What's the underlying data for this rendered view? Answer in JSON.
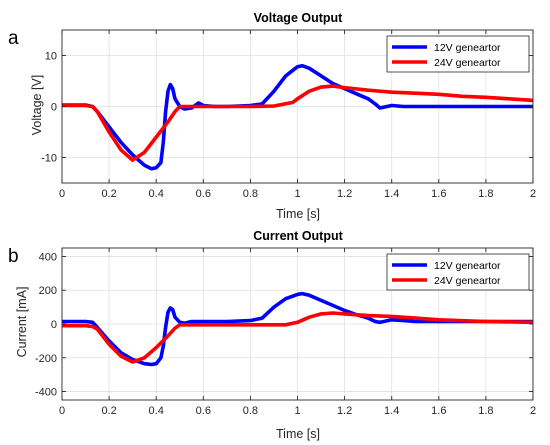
{
  "chart_data": [
    {
      "type": "line",
      "panel_label": "a",
      "title": "Voltage Output",
      "xlabel": "Time [s]",
      "ylabel": "Voltage [V]",
      "xlim": [
        0,
        2
      ],
      "ylim": [
        -15,
        15
      ],
      "xticks": [
        "0",
        "0.2",
        "0.4",
        "0.6",
        "0.8",
        "1",
        "1.2",
        "1.4",
        "1.6",
        "1.8",
        "2"
      ],
      "yticks": [
        "-10",
        "0",
        "10"
      ],
      "ytick_values": [
        -10,
        0,
        10
      ],
      "grid": true,
      "legend_position": "top-right",
      "series": [
        {
          "name": "12V geneartor",
          "color": "#0000ff",
          "x": [
            0,
            0.1,
            0.13,
            0.15,
            0.2,
            0.25,
            0.3,
            0.35,
            0.38,
            0.4,
            0.42,
            0.43,
            0.44,
            0.45,
            0.46,
            0.47,
            0.48,
            0.5,
            0.52,
            0.55,
            0.58,
            0.6,
            0.65,
            0.7,
            0.8,
            0.85,
            0.9,
            0.95,
            1.0,
            1.02,
            1.05,
            1.1,
            1.15,
            1.2,
            1.25,
            1.3,
            1.33,
            1.35,
            1.38,
            1.4,
            1.45,
            1.5,
            1.6,
            1.8,
            2.0
          ],
          "y": [
            0.3,
            0.3,
            0,
            -1,
            -4,
            -7,
            -9.5,
            -11.5,
            -12.2,
            -12,
            -11,
            -7,
            -1,
            3,
            4.3,
            3.5,
            1.5,
            0,
            -0.5,
            -0.3,
            0.7,
            0.2,
            0,
            0,
            0.2,
            0.5,
            3,
            6,
            7.8,
            8,
            7.5,
            6,
            4.5,
            3.5,
            2.5,
            1.5,
            0.5,
            -0.3,
            0,
            0.2,
            0,
            0,
            0,
            0,
            0
          ]
        },
        {
          "name": "24V geneartor",
          "color": "#ff0000",
          "x": [
            0,
            0.1,
            0.13,
            0.15,
            0.2,
            0.25,
            0.3,
            0.35,
            0.4,
            0.45,
            0.48,
            0.5,
            0.55,
            0.6,
            0.7,
            0.8,
            0.9,
            0.98,
            1.0,
            1.05,
            1.1,
            1.15,
            1.2,
            1.3,
            1.4,
            1.5,
            1.6,
            1.7,
            1.8,
            1.9,
            2.0
          ],
          "y": [
            0.2,
            0.2,
            0,
            -1,
            -5,
            -8.5,
            -10.5,
            -9,
            -6,
            -3,
            -1,
            0,
            0,
            0,
            0,
            0,
            0.1,
            0.8,
            1.5,
            3,
            3.8,
            4,
            3.7,
            3.2,
            2.8,
            2.6,
            2.4,
            2,
            1.8,
            1.5,
            1.2
          ]
        }
      ]
    },
    {
      "type": "line",
      "panel_label": "b",
      "title": "Current Output",
      "xlabel": "Time [s]",
      "ylabel": "Current [mA]",
      "xlim": [
        0,
        2
      ],
      "ylim": [
        -450,
        450
      ],
      "xticks": [
        "0",
        "0.2",
        "0.4",
        "0.6",
        "0.8",
        "1",
        "1.2",
        "1.4",
        "1.6",
        "1.8",
        "2"
      ],
      "yticks": [
        "-400",
        "-200",
        "0",
        "200",
        "400"
      ],
      "ytick_values": [
        -400,
        -200,
        0,
        200,
        400
      ],
      "grid": true,
      "legend_position": "top-right",
      "series": [
        {
          "name": "12V geneartor",
          "color": "#0000ff",
          "x": [
            0,
            0.1,
            0.13,
            0.15,
            0.2,
            0.25,
            0.3,
            0.35,
            0.38,
            0.4,
            0.42,
            0.43,
            0.44,
            0.45,
            0.46,
            0.47,
            0.48,
            0.5,
            0.52,
            0.55,
            0.6,
            0.7,
            0.8,
            0.85,
            0.9,
            0.95,
            1.0,
            1.02,
            1.05,
            1.1,
            1.15,
            1.2,
            1.25,
            1.3,
            1.33,
            1.35,
            1.4,
            1.45,
            1.5,
            1.6,
            1.8,
            2.0
          ],
          "y": [
            15,
            15,
            10,
            -20,
            -100,
            -170,
            -210,
            -235,
            -240,
            -235,
            -200,
            -130,
            -20,
            70,
            95,
            85,
            40,
            10,
            5,
            15,
            15,
            15,
            20,
            35,
            100,
            150,
            175,
            180,
            170,
            140,
            110,
            80,
            55,
            35,
            15,
            10,
            25,
            20,
            15,
            15,
            15,
            15
          ]
        },
        {
          "name": "24V geneartor",
          "color": "#ff0000",
          "x": [
            0,
            0.1,
            0.13,
            0.15,
            0.2,
            0.25,
            0.3,
            0.35,
            0.4,
            0.45,
            0.48,
            0.5,
            0.6,
            0.8,
            0.95,
            1.0,
            1.05,
            1.1,
            1.15,
            1.2,
            1.3,
            1.4,
            1.5,
            1.6,
            1.8,
            2.0
          ],
          "y": [
            -10,
            -10,
            -15,
            -30,
            -120,
            -190,
            -225,
            -200,
            -140,
            -70,
            -25,
            -5,
            -5,
            -5,
            -5,
            10,
            40,
            60,
            65,
            60,
            50,
            45,
            35,
            25,
            15,
            10
          ]
        }
      ]
    }
  ]
}
